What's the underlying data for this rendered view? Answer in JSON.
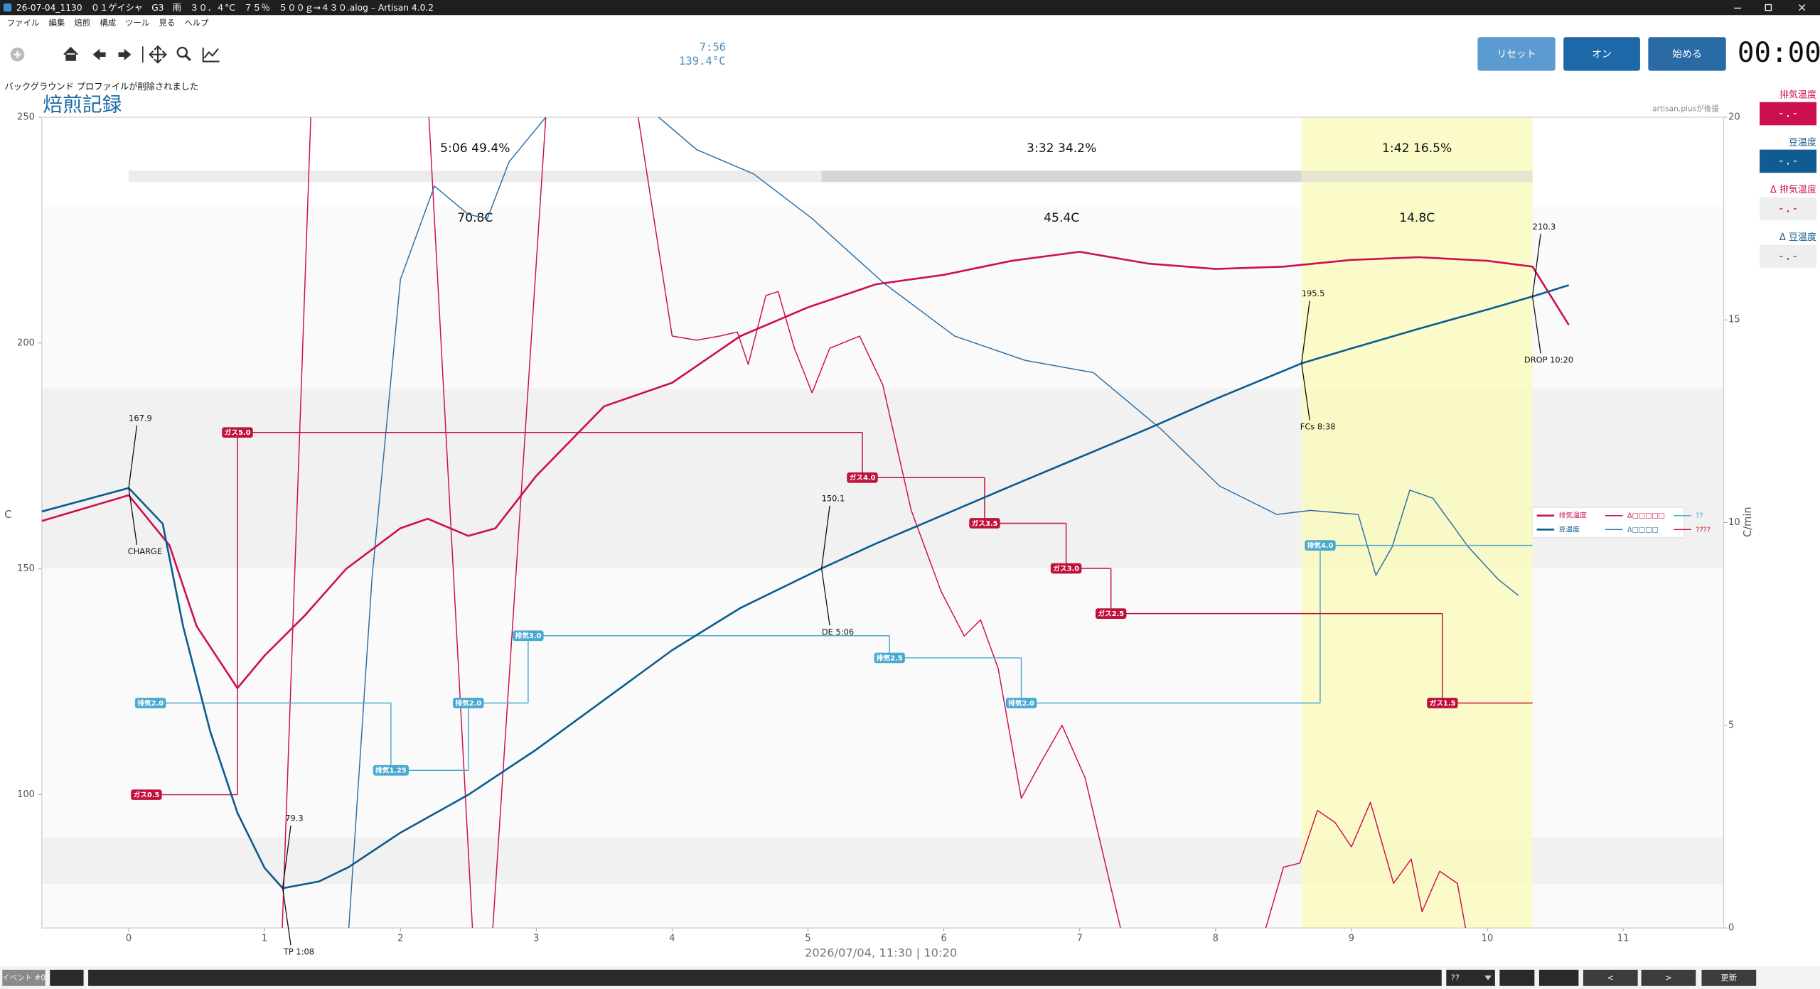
{
  "window": {
    "title": "26-07-04_1130　０１ゲイシャ　G3　雨　３０．４°C　７５％　５００ｇ→４３０.alog – Artisan 4.0.2",
    "menu": [
      "ファイル",
      "編集",
      "焙煎",
      "構成",
      "ツール",
      "見る",
      "ヘルプ"
    ]
  },
  "toolbar": {
    "timer": "7:56",
    "reading": "139.4°C",
    "buttons": [
      "リセット",
      "オン",
      "始める"
    ],
    "clock": "00:00"
  },
  "message": "バックグラウンド プロファイルが削除されました",
  "lcds": [
    {
      "label": "排気温度",
      "value": "-.-"
    },
    {
      "label": "豆温度",
      "value": "-.-"
    },
    {
      "label": "Δ 排気温度",
      "value": "-.-"
    },
    {
      "label": "Δ 豆温度",
      "value": "-.-"
    }
  ],
  "bottom_bar": {
    "event_label": "イベント #0",
    "combo": "??",
    "prev": "<",
    "next": ">",
    "update": "更新"
  },
  "chart_data": {
    "type": "line",
    "title": "焙煎記録",
    "sponsor": "artisan.plusが後援",
    "xlabel": "2026/07/04, 11:30   |   10:20",
    "ylabel": "C",
    "y2label": "C/min",
    "xlim": [
      -0.64,
      11.74
    ],
    "xticks": [
      0,
      1,
      2,
      3,
      4,
      5,
      6,
      7,
      8,
      9,
      10,
      11
    ],
    "ylim": [
      70.5,
      250
    ],
    "yticks": [
      100,
      150,
      200,
      250
    ],
    "y2lim": [
      0,
      20
    ],
    "y2ticks": [
      0,
      5,
      10,
      15,
      20
    ],
    "grid": false,
    "legend": "center right",
    "series": [
      {
        "name": "排気温度",
        "color": "#cc0f50",
        "width": 1.6,
        "x": [
          -0.64,
          0,
          0.3,
          0.5,
          0.8,
          1.0,
          1.3,
          1.6,
          2.0,
          2.2,
          2.5,
          2.7,
          3.0,
          3.5,
          4.0,
          4.5,
          5.0,
          5.5,
          6.0,
          6.5,
          7.0,
          7.5,
          8.0,
          8.5,
          9.0,
          9.5,
          10.0,
          10.333,
          10.6
        ],
        "values": [
          160.6,
          166.3,
          155.2,
          137.3,
          123.6,
          130.8,
          139.8,
          150,
          159,
          161.1,
          157.3,
          159,
          170.6,
          186,
          191.2,
          201.5,
          207.9,
          213,
          215.1,
          218.2,
          220.2,
          217.6,
          216.4,
          216.9,
          218.4,
          219,
          218.2,
          216.9,
          204
        ]
      },
      {
        "name": "豆温度",
        "color": "#0a5c90",
        "width": 1.6,
        "x": [
          -0.64,
          0,
          0.25,
          0.4,
          0.6,
          0.8,
          1.0,
          1.133,
          1.4,
          1.62,
          2.0,
          2.5,
          3.0,
          3.5,
          4.0,
          4.5,
          5.1,
          5.5,
          6.0,
          6.5,
          7.0,
          7.5,
          8.0,
          8.633,
          9.0,
          9.5,
          10.0,
          10.333,
          10.6
        ],
        "values": [
          162.7,
          167.9,
          160,
          137.3,
          114,
          96,
          83.8,
          79.3,
          80.8,
          84,
          91.6,
          100,
          110,
          121,
          132,
          141.3,
          150.1,
          155.6,
          162,
          168.4,
          174.7,
          181,
          187.6,
          195.5,
          198.8,
          203.2,
          207.4,
          210.3,
          212.8
        ]
      },
      {
        "name": "Δ□□□□□",
        "color": "#cc0f50",
        "width": 0.9,
        "axis": "y2",
        "x": [
          1.13,
          1.34,
          1.8,
          2.21,
          2.53,
          2.6,
          2.68,
          3.07,
          3.4,
          3.75,
          4.0,
          4.18,
          4.35,
          4.48,
          4.56,
          4.69,
          4.78,
          4.9,
          5.03,
          5.16,
          5.38,
          5.55,
          5.76,
          5.98,
          6.15,
          6.27,
          6.4,
          6.57,
          6.7,
          6.87,
          7.04,
          7.3,
          7.8,
          8.37,
          8.5,
          8.62,
          8.75,
          8.88,
          9.0,
          9.14,
          9.31,
          9.44,
          9.52,
          9.65,
          9.78,
          9.84
        ],
        "values": [
          0,
          20,
          null,
          20,
          0,
          null,
          0,
          20,
          null,
          20,
          14.6,
          14.5,
          14.6,
          14.7,
          13.9,
          15.6,
          15.7,
          14.3,
          13.2,
          14.3,
          14.6,
          13.4,
          10.3,
          8.3,
          7.2,
          7.6,
          6.4,
          3.2,
          4,
          5,
          3.7,
          0,
          null,
          0,
          1.5,
          1.6,
          2.9,
          2.6,
          2,
          3.1,
          1.1,
          1.7,
          0.4,
          1.4,
          1.1,
          0
        ]
      },
      {
        "name": "Δ□□□□",
        "color": "#2a6fa8",
        "width": 0.9,
        "axis": "y2",
        "x": [
          1.62,
          1.79,
          2.0,
          2.25,
          2.5,
          2.64,
          2.8,
          3.07,
          3.5,
          3.9,
          4.18,
          4.6,
          5.03,
          5.56,
          6.08,
          6.6,
          7.1,
          7.6,
          8.03,
          8.45,
          8.7,
          9.05,
          9.18,
          9.3,
          9.43,
          9.6,
          9.86,
          10.08,
          10.23
        ],
        "values": [
          0,
          8.6,
          16,
          18.3,
          17.6,
          17.5,
          18.9,
          20,
          null,
          20,
          19.2,
          18.6,
          17.5,
          15.9,
          14.6,
          14,
          13.7,
          12.3,
          10.9,
          10.2,
          10.3,
          10.2,
          8.7,
          9.4,
          10.8,
          10.6,
          9.4,
          8.6,
          8.2
        ]
      },
      {
        "name": "??",
        "color": "#49a9d0",
        "width": 0.9,
        "step": true,
        "x": [
          0.16,
          1.93,
          2.5,
          2.94,
          5.6,
          6.57,
          8.77
        ],
        "values": [
          120.3,
          105.4,
          120.3,
          135.2,
          130.3,
          120.3,
          155.2
        ],
        "event_labels": [
          "排気2.0",
          "排気1.25",
          "排気2.0",
          "排気3.0",
          "排気2.5",
          "排気2.0",
          "排気4.0"
        ]
      },
      {
        "name": "????",
        "color": "#c0103c",
        "width": 0.9,
        "step": true,
        "x": [
          0.13,
          0.8,
          5.4,
          6.3,
          6.9,
          7.23,
          9.67
        ],
        "values": [
          100,
          180.2,
          170.2,
          160.1,
          150.1,
          140.1,
          120.3
        ],
        "event_labels": [
          "ガス0.5",
          "ガス5.0",
          "ガス4.0",
          "ガス3.5",
          "ガス3.0",
          "ガス2.5",
          "ガス1.5"
        ]
      }
    ],
    "annotations": [
      {
        "label": "CHARGE",
        "x": 0,
        "y": 167.9
      },
      {
        "label": "TP 1:08",
        "x": 1.133,
        "y": 79.3
      },
      {
        "label": "DE 5:06",
        "x": 5.1,
        "y": 150.1
      },
      {
        "label": "FCs 8:38",
        "x": 8.633,
        "y": 195.5
      },
      {
        "label": "DROP 10:20",
        "x": 10.333,
        "y": 210.3
      }
    ],
    "phases": [
      {
        "label": "5:06  49.4%",
        "temp_label": "70.8C"
      },
      {
        "label": "3:32  34.2%",
        "temp_label": "45.4C"
      },
      {
        "label": "1:42  16.5%",
        "temp_label": "14.8C"
      }
    ]
  }
}
